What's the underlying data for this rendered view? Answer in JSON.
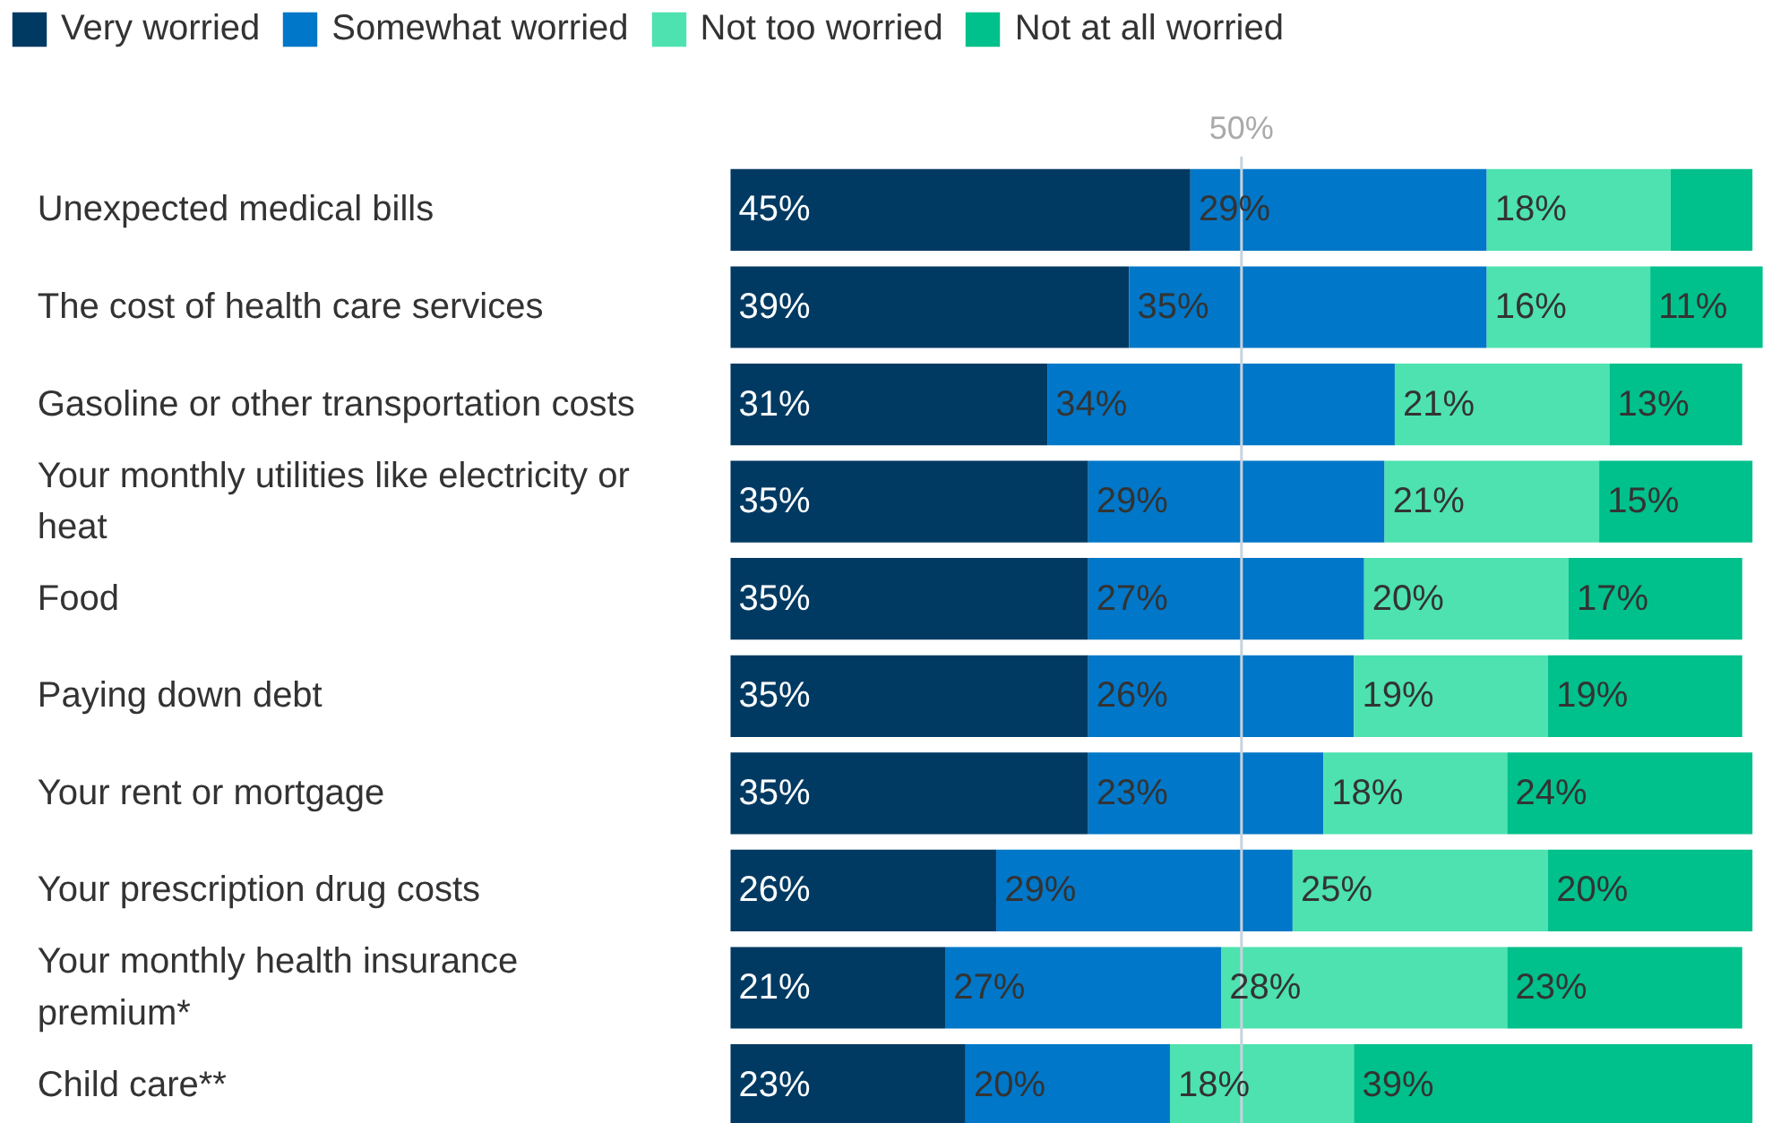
{
  "chart_data": {
    "type": "bar",
    "orientation": "horizontal",
    "stacked": true,
    "legend": "top",
    "tick_labels": "y",
    "grid": false,
    "categories": [
      "Unexpected medical bills",
      "The cost of health care services",
      "Gasoline or other transportation costs",
      "Your monthly utilities like electricity or\nheat",
      "Food",
      "Paying down debt",
      "Your rent or mortgage",
      "Your prescription drug costs",
      "Your monthly health insurance\npremium*",
      "Child care**"
    ],
    "xlim": [
      0,
      102
    ],
    "series": [
      {
        "name": "Very worried",
        "color": "#003a63",
        "values": [
          45,
          39,
          31,
          35,
          35,
          35,
          35,
          26,
          21,
          23
        ],
        "value_labels": [
          "45%",
          "39%",
          "31%",
          "35%",
          "35%",
          "35%",
          "35%",
          "26%",
          "21%",
          "23%"
        ]
      },
      {
        "name": "Somewhat worried",
        "color": "#0077c8",
        "values": [
          29,
          35,
          34,
          29,
          27,
          26,
          23,
          29,
          27,
          20
        ],
        "value_labels": [
          "29%",
          "35%",
          "34%",
          "29%",
          "27%",
          "26%",
          "23%",
          "29%",
          "27%",
          "20%"
        ]
      },
      {
        "name": "Not too worried",
        "color": "#4de2b0",
        "values": [
          18,
          16,
          21,
          21,
          20,
          19,
          18,
          25,
          28,
          18
        ],
        "value_labels": [
          "18%",
          "16%",
          "21%",
          "21%",
          "20%",
          "19%",
          "18%",
          "25%",
          "28%",
          "18%"
        ]
      },
      {
        "name": "Not at all worried",
        "color": "#00c08b",
        "values": [
          8,
          11,
          13,
          15,
          17,
          19,
          24,
          20,
          23,
          39
        ],
        "value_labels": [
          null,
          "11%",
          "13%",
          "15%",
          "17%",
          "19%",
          "24%",
          "20%",
          "23%",
          "39%"
        ]
      }
    ],
    "ref_lines": [
      {
        "axis": "x",
        "value": 50,
        "label": "50%",
        "color": "#c8d3dc"
      }
    ]
  }
}
